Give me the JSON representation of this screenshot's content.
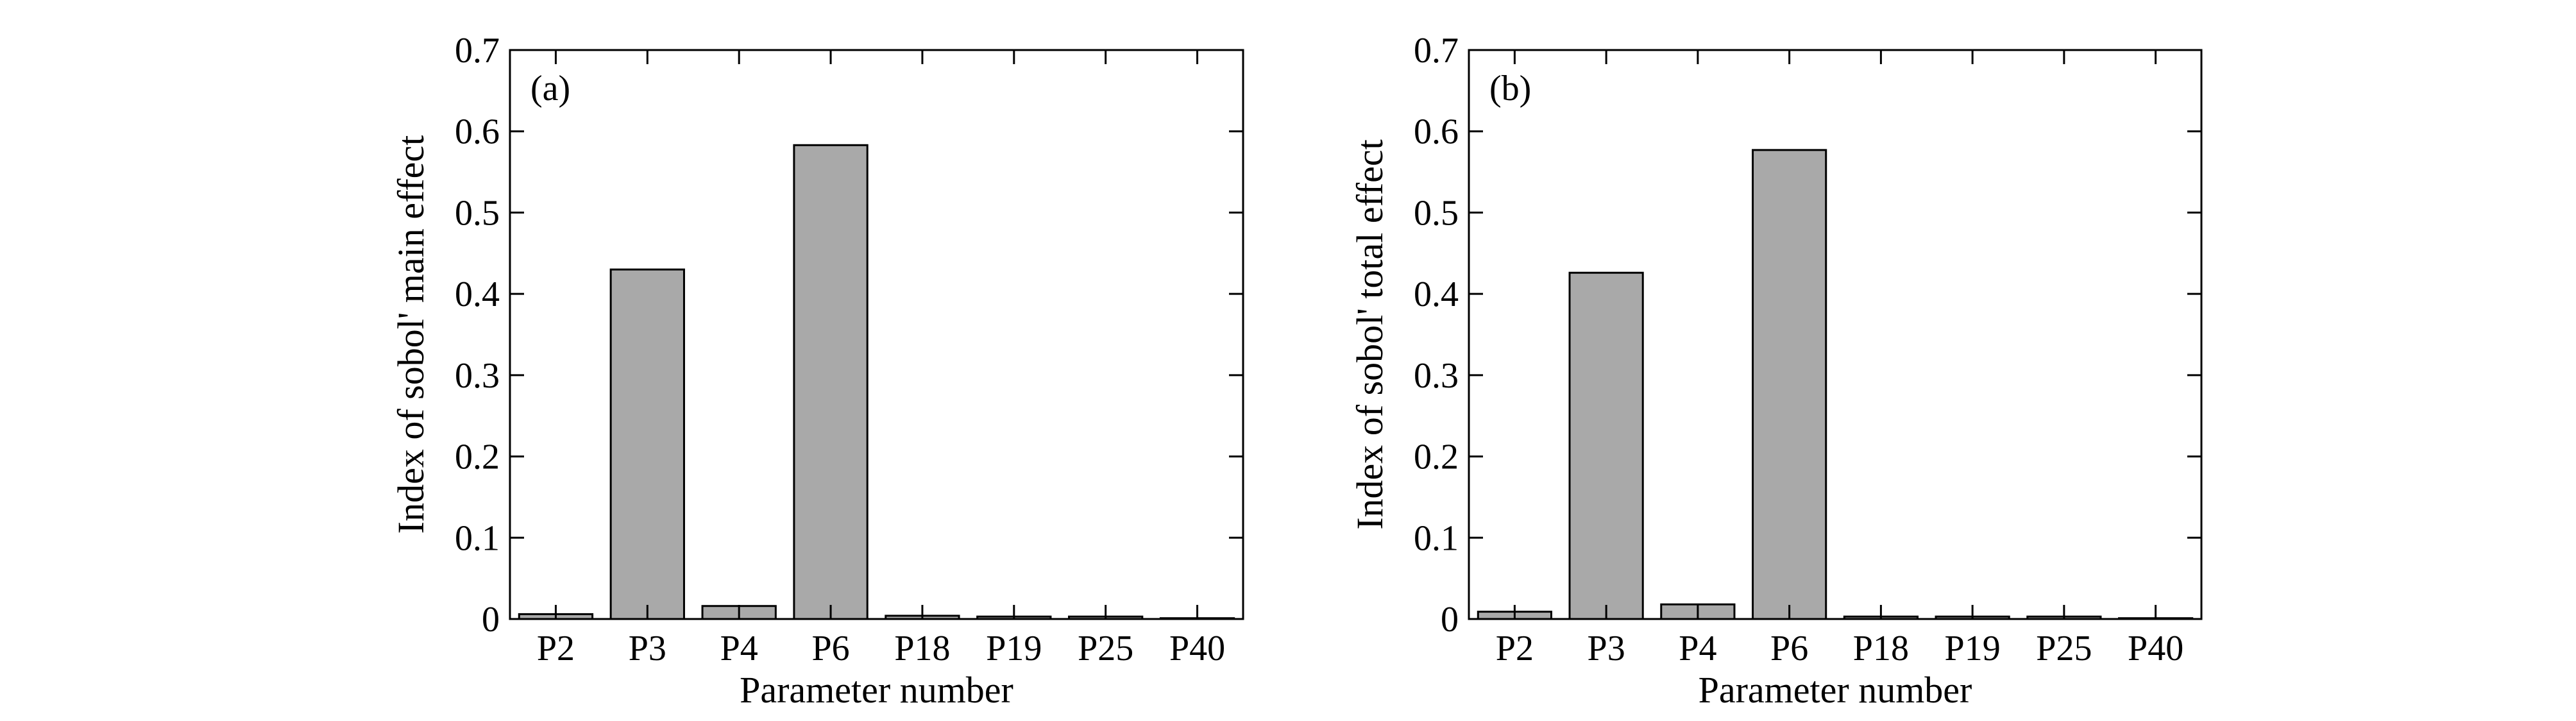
{
  "chart_data": [
    {
      "type": "bar",
      "panel_label": "(a)",
      "title": "",
      "xlabel": "Parameter number",
      "ylabel": "Index of sobol' main effect",
      "categories": [
        "P2",
        "P3",
        "P4",
        "P6",
        "P18",
        "P19",
        "P25",
        "P40"
      ],
      "values": [
        0.006,
        0.43,
        0.016,
        0.583,
        0.004,
        0.003,
        0.003,
        0.001
      ],
      "ylim": [
        0,
        0.7
      ],
      "yticks": [
        "0",
        "0.1",
        "0.2",
        "0.3",
        "0.4",
        "0.5",
        "0.6",
        "0.7"
      ],
      "grid": false,
      "bar_color": "#a9a9a9"
    },
    {
      "type": "bar",
      "panel_label": "(b)",
      "title": "",
      "xlabel": "Parameter number",
      "ylabel": "Index of sobol' total effect",
      "categories": [
        "P2",
        "P3",
        "P4",
        "P6",
        "P18",
        "P19",
        "P25",
        "P40"
      ],
      "values": [
        0.009,
        0.426,
        0.018,
        0.577,
        0.003,
        0.003,
        0.003,
        0.001
      ],
      "ylim": [
        0,
        0.7
      ],
      "yticks": [
        "0",
        "0.1",
        "0.2",
        "0.3",
        "0.4",
        "0.5",
        "0.6",
        "0.7"
      ],
      "grid": false,
      "bar_color": "#a9a9a9"
    }
  ]
}
